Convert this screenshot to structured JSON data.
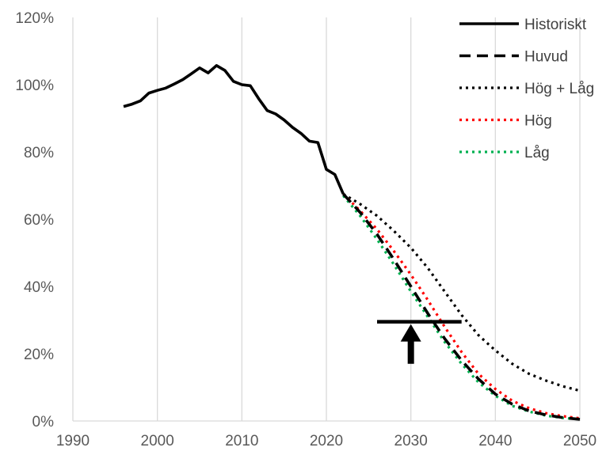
{
  "chart_data": {
    "type": "line",
    "title": "",
    "xlabel": "",
    "ylabel": "",
    "xlim": [
      1990,
      2050
    ],
    "ylim": [
      0,
      120
    ],
    "x_ticks": [
      "1990",
      "2000",
      "2010",
      "2020",
      "2030",
      "2040",
      "2050"
    ],
    "y_ticks": [
      "0%",
      "20%",
      "40%",
      "60%",
      "80%",
      "100%",
      "120%"
    ],
    "grid": "vertical",
    "legend_position": "top-right",
    "series": [
      {
        "name": "Historiskt",
        "color": "#000000",
        "style": "solid",
        "x": [
          1996,
          1997,
          1998,
          1999,
          2000,
          2001,
          2002,
          2003,
          2004,
          2005,
          2006,
          2007,
          2008,
          2009,
          2010,
          2011,
          2012,
          2013,
          2014,
          2015,
          2016,
          2017,
          2018,
          2019,
          2020,
          2021,
          2022
        ],
        "y": [
          93.5,
          94.2,
          95.2,
          97.5,
          98.3,
          99.0,
          100.2,
          101.5,
          103.2,
          105.0,
          103.5,
          105.7,
          104.2,
          101.0,
          100.0,
          99.7,
          95.8,
          92.3,
          91.3,
          89.5,
          87.3,
          85.5,
          83.2,
          82.8,
          74.8,
          73.3,
          67.5
        ]
      },
      {
        "name": "Huvud",
        "color": "#000000",
        "style": "dashed",
        "x": [
          2022,
          2024,
          2026,
          2028,
          2030,
          2032,
          2034,
          2036,
          2038,
          2040,
          2042,
          2044,
          2046,
          2048,
          2050
        ],
        "y": [
          67.5,
          62.0,
          55.5,
          48.0,
          40.0,
          32.0,
          24.5,
          18.0,
          12.5,
          8.0,
          5.0,
          3.0,
          1.8,
          1.0,
          0.5
        ]
      },
      {
        "name": "Hög + Låg",
        "color": "#000000",
        "style": "dotted",
        "x": [
          2022,
          2024,
          2026,
          2028,
          2030,
          2032,
          2034,
          2036,
          2038,
          2040,
          2042,
          2044,
          2046,
          2048,
          2050
        ],
        "y": [
          67.5,
          64.5,
          61.0,
          56.5,
          51.5,
          45.5,
          38.5,
          31.5,
          25.5,
          21.0,
          17.0,
          14.0,
          12.0,
          10.3,
          9.0
        ]
      },
      {
        "name": "Hög",
        "color": "#ff0000",
        "style": "dotted",
        "x": [
          2022,
          2024,
          2026,
          2028,
          2030,
          2032,
          2034,
          2036,
          2038,
          2040,
          2042,
          2044,
          2046,
          2048,
          2050
        ],
        "y": [
          67.5,
          62.5,
          57.0,
          50.5,
          43.5,
          36.0,
          28.0,
          20.5,
          14.0,
          9.5,
          6.0,
          3.8,
          2.3,
          1.4,
          0.8
        ]
      },
      {
        "name": "Låg",
        "color": "#00b050",
        "style": "dotted",
        "x": [
          2022,
          2024,
          2026,
          2028,
          2030,
          2032,
          2034,
          2036,
          2038,
          2040,
          2042,
          2044,
          2046,
          2048,
          2050
        ],
        "y": [
          67.0,
          61.0,
          54.0,
          46.5,
          38.5,
          31.0,
          23.5,
          17.0,
          11.5,
          7.5,
          4.5,
          2.8,
          1.6,
          0.9,
          0.5
        ]
      }
    ],
    "annotations": [
      {
        "type": "target-bar",
        "x_from": 2026,
        "x_to": 2036,
        "y": 29.5
      },
      {
        "type": "up-arrow",
        "x": 2030,
        "y_from": 17,
        "y_to": 29.5
      }
    ]
  }
}
